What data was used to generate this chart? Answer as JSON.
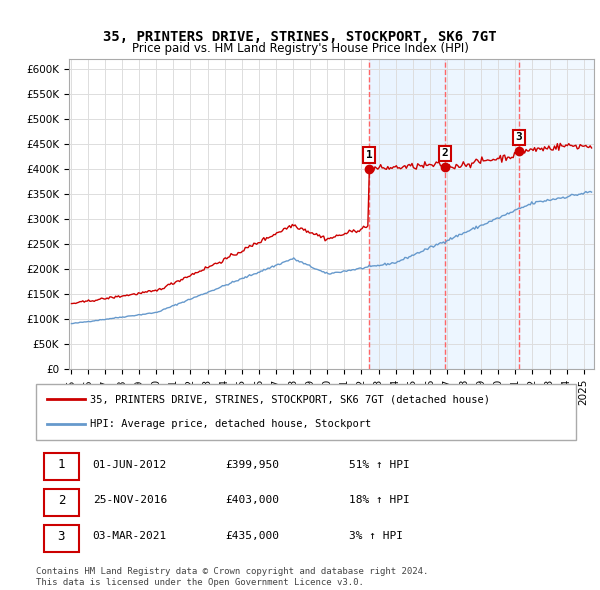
{
  "title": "35, PRINTERS DRIVE, STRINES, STOCKPORT, SK6 7GT",
  "subtitle": "Price paid vs. HM Land Registry's House Price Index (HPI)",
  "ytick_values": [
    0,
    50000,
    100000,
    150000,
    200000,
    250000,
    300000,
    350000,
    400000,
    450000,
    500000,
    550000,
    600000
  ],
  "ylim": [
    0,
    620000
  ],
  "transactions": [
    {
      "date": "01-JUN-2012",
      "price": 399950,
      "label": "1",
      "pct": "51% ↑ HPI"
    },
    {
      "date": "25-NOV-2016",
      "price": 403000,
      "label": "2",
      "pct": "18% ↑ HPI"
    },
    {
      "date": "03-MAR-2021",
      "price": 435000,
      "label": "3",
      "pct": "3% ↑ HPI"
    }
  ],
  "legend_property_label": "35, PRINTERS DRIVE, STRINES, STOCKPORT, SK6 7GT (detached house)",
  "legend_hpi_label": "HPI: Average price, detached house, Stockport",
  "property_line_color": "#cc0000",
  "hpi_line_color": "#6699cc",
  "transaction_marker_color": "#cc0000",
  "vline_color": "#ff6666",
  "shade_color": "#ddeeff",
  "footer": "Contains HM Land Registry data © Crown copyright and database right 2024.\nThis data is licensed under the Open Government Licence v3.0.",
  "background_color": "#ffffff",
  "grid_color": "#dddddd"
}
